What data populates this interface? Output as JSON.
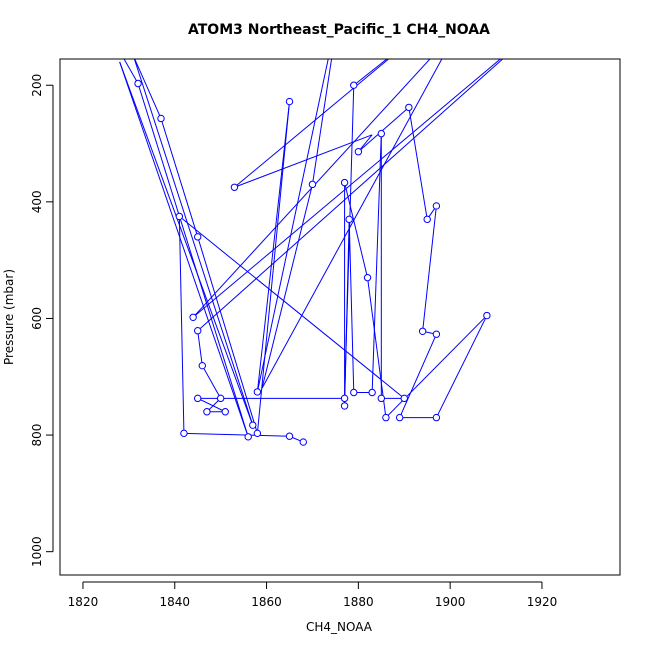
{
  "chart_data": {
    "type": "line",
    "title": "ATOM3 Northeast_Pacific_1 CH4_NOAA",
    "xlabel": "CH4_NOAA",
    "ylabel": "Pressure (mbar)",
    "xlim": [
      1815,
      1937
    ],
    "ylim": [
      1040,
      155
    ],
    "y_inverted": true,
    "x_ticks": [
      1820,
      1840,
      1860,
      1880,
      1900,
      1920
    ],
    "x_tick_labels": [
      "1820",
      "1840",
      "1860",
      "1880",
      "1900",
      "1920"
    ],
    "y_ticks": [
      200,
      400,
      600,
      800,
      1000
    ],
    "y_tick_labels": [
      "200",
      "400",
      "600",
      "800",
      "1000"
    ],
    "grid": false,
    "line_color": "#0000ff",
    "series": [
      {
        "points": [
          {
            "x": 1821.0,
            "y": 45.0,
            "marker": false
          },
          {
            "x": 1832.0,
            "y": 197.0,
            "marker": true
          },
          {
            "x": 1856.0,
            "y": 803.0,
            "marker": true
          },
          {
            "x": 1828.0,
            "y": 160.0,
            "marker": false
          },
          {
            "x": 1857.0,
            "y": 783.0,
            "marker": true
          },
          {
            "x": 1831.0,
            "y": 150.0,
            "marker": false
          },
          {
            "x": 1837.0,
            "y": 257.0,
            "marker": true
          },
          {
            "x": 1845.0,
            "y": 460.0,
            "marker": true
          },
          {
            "x": 1858.0,
            "y": 797.0,
            "marker": true
          },
          {
            "x": 1865.0,
            "y": 228.0,
            "marker": true
          },
          {
            "x": 1858.0,
            "y": 726.0,
            "marker": true
          },
          {
            "x": 1876.0,
            "y": 60.0,
            "marker": false
          },
          {
            "x": 1870.0,
            "y": 370.0,
            "marker": true
          },
          {
            "x": 1859.0,
            "y": 720.0,
            "marker": false
          },
          {
            "x": 1902.0,
            "y": 100.0,
            "marker": false
          },
          {
            "x": 1844.0,
            "y": 598.0,
            "marker": true
          },
          {
            "x": 1920.0,
            "y": 95.0,
            "marker": false
          },
          {
            "x": 1845.0,
            "y": 621.0,
            "marker": true
          },
          {
            "x": 1846.0,
            "y": 681.0,
            "marker": true
          },
          {
            "x": 1850.0,
            "y": 737.0,
            "marker": true
          },
          {
            "x": 1847.0,
            "y": 760.0,
            "marker": true
          },
          {
            "x": 1851.0,
            "y": 760.0,
            "marker": true
          },
          {
            "x": 1845.0,
            "y": 737.0,
            "marker": true
          },
          {
            "x": 1877.0,
            "y": 737.0,
            "marker": true
          },
          {
            "x": 1879.0,
            "y": 200.0,
            "marker": true
          },
          {
            "x": 1895.0,
            "y": 100.0,
            "marker": false
          },
          {
            "x": 1853.0,
            "y": 375.0,
            "marker": true
          },
          {
            "x": 1883.0,
            "y": 285.0,
            "marker": false
          },
          {
            "x": 1880.0,
            "y": 314.0,
            "marker": true
          },
          {
            "x": 1891.0,
            "y": 238.0,
            "marker": true
          },
          {
            "x": 1895.0,
            "y": 430.0,
            "marker": true
          },
          {
            "x": 1897.0,
            "y": 407.0,
            "marker": true
          },
          {
            "x": 1894.0,
            "y": 622.0,
            "marker": true
          },
          {
            "x": 1897.0,
            "y": 627.0,
            "marker": true
          },
          {
            "x": 1889.0,
            "y": 770.0,
            "marker": true
          },
          {
            "x": 1897.0,
            "y": 770.0,
            "marker": true
          },
          {
            "x": 1908.0,
            "y": 595.0,
            "marker": true
          },
          {
            "x": 1886.0,
            "y": 770.0,
            "marker": true
          },
          {
            "x": 1882.0,
            "y": 530.0,
            "marker": true
          },
          {
            "x": 1877.0,
            "y": 367.0,
            "marker": true
          },
          {
            "x": 1877.0,
            "y": 750.0,
            "marker": true
          },
          {
            "x": 1878.0,
            "y": 430.0,
            "marker": true
          },
          {
            "x": 1879.0,
            "y": 727.0,
            "marker": true
          },
          {
            "x": 1883.0,
            "y": 727.0,
            "marker": true
          },
          {
            "x": 1885.0,
            "y": 283.0,
            "marker": true
          },
          {
            "x": 1885.0,
            "y": 737.0,
            "marker": true
          },
          {
            "x": 1890.0,
            "y": 737.0,
            "marker": true
          },
          {
            "x": 1841.0,
            "y": 425.0,
            "marker": true
          },
          {
            "x": 1842.0,
            "y": 797.0,
            "marker": true
          },
          {
            "x": 1865.0,
            "y": 802.0,
            "marker": true
          },
          {
            "x": 1868.0,
            "y": 812.0,
            "marker": true
          }
        ]
      }
    ]
  }
}
